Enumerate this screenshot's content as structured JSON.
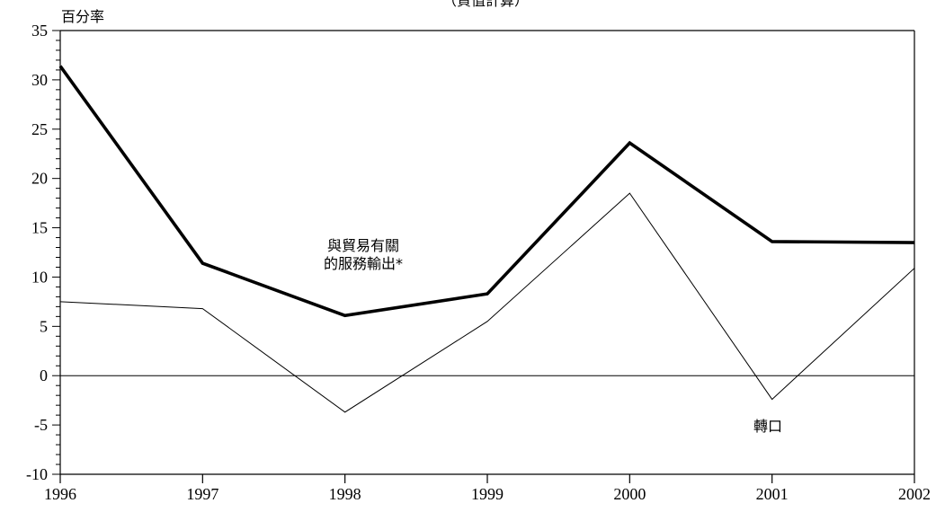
{
  "chart_data": {
    "type": "line",
    "title": "（貨值計算）",
    "ylabel": "百分率",
    "xlabel": "",
    "x": [
      "1996",
      "1997",
      "1998",
      "1999",
      "2000",
      "2001",
      "2002"
    ],
    "ylim": [
      -10,
      35
    ],
    "yticks": [
      35,
      30,
      25,
      20,
      15,
      10,
      5,
      0,
      -5,
      -10
    ],
    "series": [
      {
        "name": "與貿易有關的服務輸出*",
        "label_lines": [
          "與貿易有關",
          "的服務輸出*"
        ],
        "values": [
          31.4,
          11.4,
          6.1,
          8.3,
          23.6,
          13.6,
          13.5
        ],
        "style": "thick"
      },
      {
        "name": "轉口",
        "label_lines": [
          "轉口"
        ],
        "values": [
          7.5,
          6.8,
          -3.7,
          5.5,
          18.5,
          -2.4,
          10.9
        ],
        "style": "thin"
      }
    ]
  }
}
